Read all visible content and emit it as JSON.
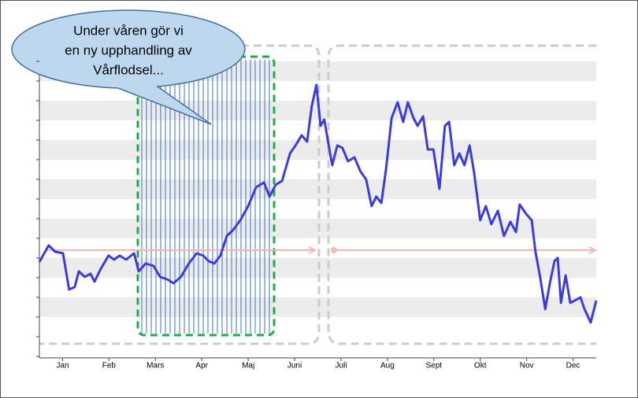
{
  "chart_data": {
    "type": "line",
    "annotation": [
      "Under våren gör vi",
      "en ny upphandling av",
      "Vårflodsel..."
    ],
    "xlim": [
      0,
      12
    ],
    "xticks": [
      {
        "value": 0.5,
        "label": "Jan"
      },
      {
        "value": 1.5,
        "label": "Feb"
      },
      {
        "value": 2.5,
        "label": "Mars"
      },
      {
        "value": 3.5,
        "label": "Apr"
      },
      {
        "value": 4.5,
        "label": "Maj"
      },
      {
        "value": 5.5,
        "label": "Juni"
      },
      {
        "value": 6.5,
        "label": "Juli"
      },
      {
        "value": 7.5,
        "label": "Aug"
      },
      {
        "value": 8.5,
        "label": "Sept"
      },
      {
        "value": 9.5,
        "label": "Okt"
      },
      {
        "value": 10.5,
        "label": "Nov"
      },
      {
        "value": 11.5,
        "label": "Dec"
      }
    ],
    "ylim": [
      0,
      16
    ],
    "yticks": [
      0,
      1,
      2,
      3,
      4,
      5,
      6,
      7,
      8,
      9,
      10,
      11,
      12,
      13,
      14,
      15
    ],
    "grid": true,
    "x": [
      0,
      0.2,
      0.34,
      0.51,
      0.64,
      0.76,
      0.85,
      0.98,
      1.1,
      1.19,
      1.32,
      1.49,
      1.61,
      1.73,
      1.87,
      2.04,
      2.14,
      2.29,
      2.46,
      2.6,
      2.75,
      2.89,
      3.05,
      3.22,
      3.39,
      3.53,
      3.65,
      3.77,
      3.9,
      4.04,
      4.18,
      4.33,
      4.5,
      4.67,
      4.84,
      4.96,
      5.09,
      5.23,
      5.4,
      5.52,
      5.65,
      5.77,
      5.87,
      5.97,
      6.06,
      6.14,
      6.25,
      6.31,
      6.42,
      6.53,
      6.65,
      6.79,
      6.92,
      7.04,
      7.16,
      7.26,
      7.37,
      7.47,
      7.59,
      7.72,
      7.84,
      7.94,
      8.06,
      8.15,
      8.27,
      8.37,
      8.49,
      8.62,
      8.74,
      8.83,
      8.94,
      9.05,
      9.16,
      9.27,
      9.37,
      9.5,
      9.62,
      9.74,
      9.88,
      10.01,
      10.15,
      10.27,
      10.35,
      10.49,
      10.61,
      10.69,
      10.79,
      10.9,
      11,
      11.1,
      11.17,
      11.24,
      11.34,
      11.44,
      11.54,
      11.66,
      11.74,
      11.88,
      12
    ],
    "series": [
      {
        "color": "#3c3cdc",
        "values": [
          4.8,
          5.64,
          5.32,
          5.24,
          3.4,
          3.52,
          4.32,
          4.04,
          4.2,
          3.8,
          4.44,
          5.12,
          4.92,
          5.12,
          4.92,
          5.24,
          4.32,
          4.72,
          4.6,
          4.04,
          3.92,
          3.72,
          4.04,
          4.72,
          5.24,
          5.12,
          4.84,
          4.72,
          5.12,
          6.12,
          6.44,
          6.92,
          7.64,
          8.6,
          8.84,
          8.12,
          8.72,
          8.92,
          10.32,
          10.72,
          11.24,
          10.92,
          12.72,
          13.8,
          11.72,
          12.04,
          10.52,
          9.72,
          10.72,
          10.6,
          9.92,
          10.12,
          9.4,
          9,
          7.64,
          8.12,
          7.8,
          9.52,
          12.12,
          12.92,
          11.92,
          12.92,
          12.12,
          11.72,
          12.2,
          10.52,
          10.52,
          8.52,
          11.72,
          11.92,
          9.72,
          10.32,
          9.72,
          10.72,
          9.32,
          6.92,
          7.64,
          6.72,
          7.4,
          6.12,
          6.84,
          6.32,
          7.72,
          7.24,
          6.92,
          5.32,
          4.04,
          2.4,
          3.72,
          4.84,
          5,
          2.72,
          4.12,
          2.72,
          2.84,
          3,
          2.44,
          1.72,
          2.84
        ]
      }
    ]
  }
}
